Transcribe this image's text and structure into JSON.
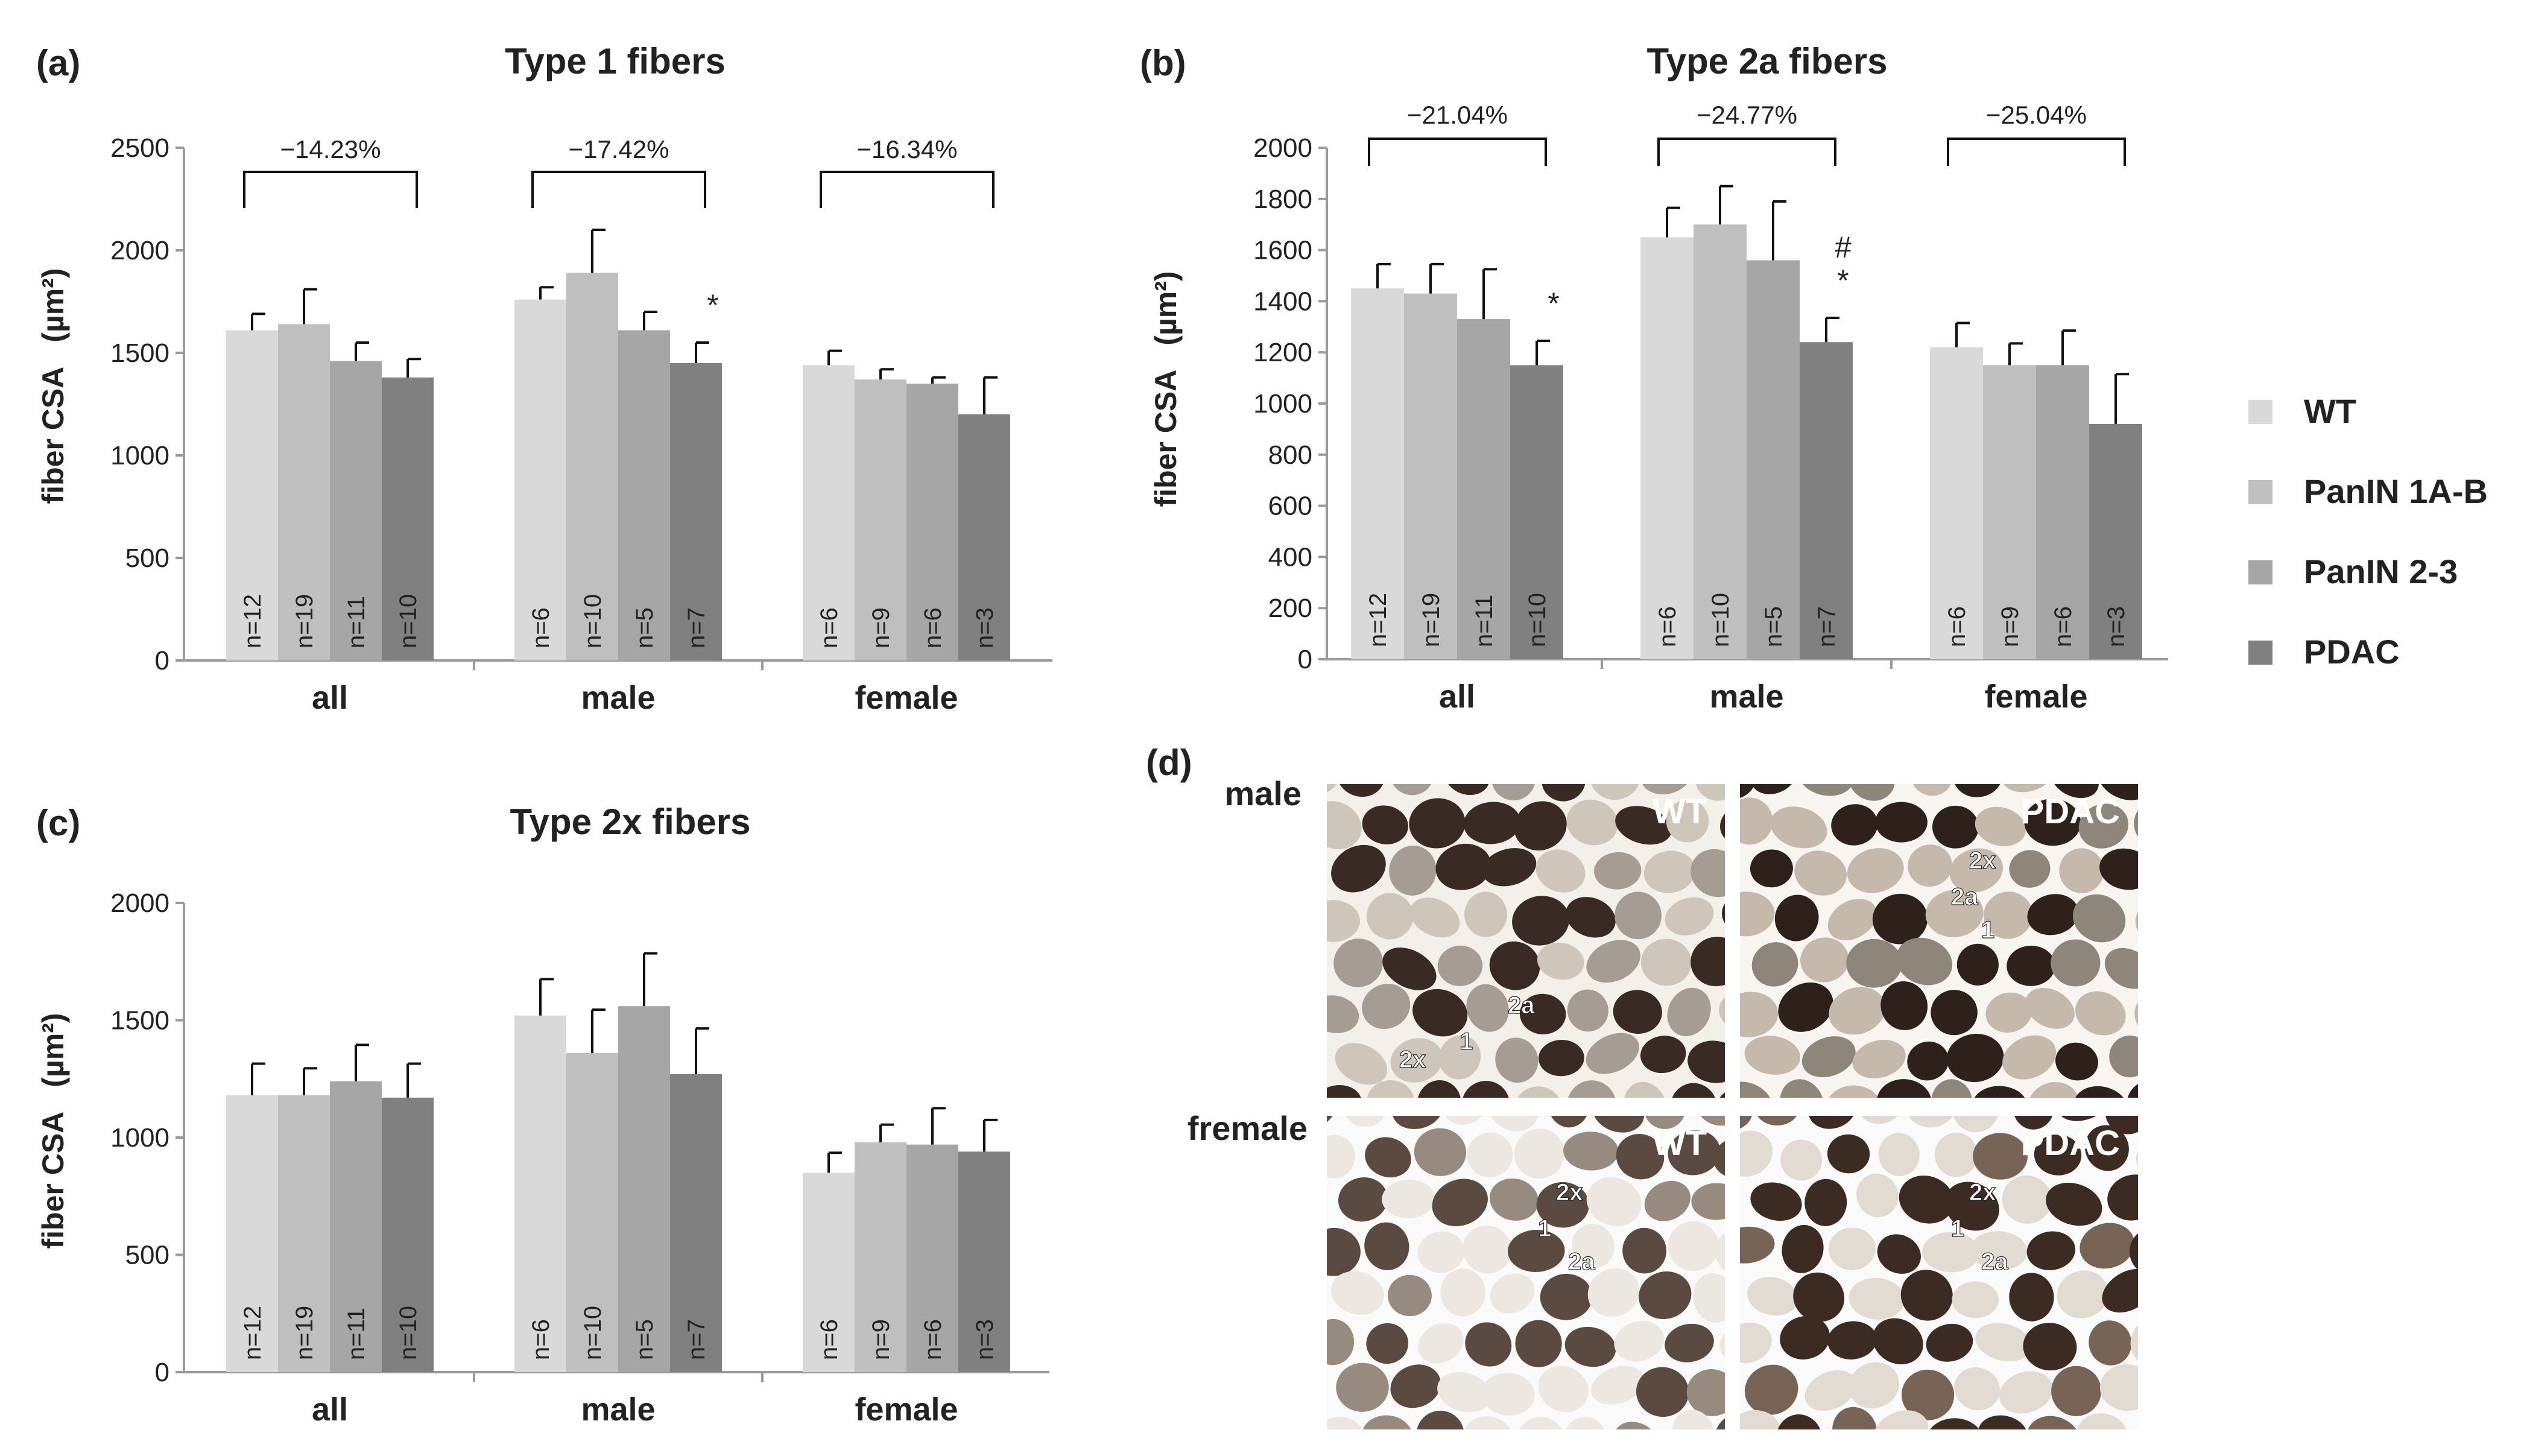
{
  "colors": {
    "WT": "#d9d9d9",
    "PanIN 1A-B": "#bfbfbf",
    "PanIN 2-3": "#a6a6a6",
    "PDAC": "#808080"
  },
  "legend": [
    "WT",
    "PanIN 1A-B",
    "PanIN 2-3",
    "PDAC"
  ],
  "chart_data": [
    {
      "id": "a",
      "panel_label": "(a)",
      "type": "bar",
      "title": "Type 1 fibers",
      "ylabel": "fiber CSA",
      "yunit": "(µm²)",
      "ylim": [
        0,
        2500
      ],
      "yticks": [
        "0",
        "500",
        "1000",
        "1500",
        "2000",
        "2500"
      ],
      "categories": [
        "all",
        "male",
        "female"
      ],
      "series": [
        {
          "name": "WT",
          "values": [
            1610,
            1760,
            1440
          ],
          "errors": [
            80,
            60,
            70
          ]
        },
        {
          "name": "PanIN 1A-B",
          "values": [
            1640,
            1890,
            1370
          ],
          "errors": [
            170,
            210,
            50
          ]
        },
        {
          "name": "PanIN 2-3",
          "values": [
            1460,
            1610,
            1350
          ],
          "errors": [
            90,
            90,
            30
          ]
        },
        {
          "name": "PDAC",
          "values": [
            1380,
            1450,
            1200
          ],
          "errors": [
            90,
            100,
            180
          ]
        }
      ],
      "n_labels": [
        [
          "n=12",
          "n=19",
          "n=11",
          "n=10"
        ],
        [
          "n=6",
          "n=10",
          "n=5",
          "n=7"
        ],
        [
          "n=6",
          "n=9",
          "n=6",
          "n=3"
        ]
      ],
      "brackets": [
        "−14.23%",
        "−17.42%",
        "−16.34%"
      ],
      "annotations": [
        "",
        "*",
        ""
      ]
    },
    {
      "id": "b",
      "panel_label": "(b)",
      "type": "bar",
      "title": "Type 2a fibers",
      "ylabel": "fiber CSA",
      "yunit": "(µm²)",
      "ylim": [
        0,
        2000
      ],
      "yticks": [
        "0",
        "200",
        "400",
        "600",
        "800",
        "1000",
        "1200",
        "1400",
        "1600",
        "1800",
        "2000"
      ],
      "categories": [
        "all",
        "male",
        "female"
      ],
      "series": [
        {
          "name": "WT",
          "values": [
            1450,
            1650,
            1220
          ],
          "errors": [
            95,
            115,
            95
          ]
        },
        {
          "name": "PanIN 1A-B",
          "values": [
            1430,
            1700,
            1150
          ],
          "errors": [
            115,
            150,
            85
          ]
        },
        {
          "name": "PanIN 2-3",
          "values": [
            1330,
            1560,
            1150
          ],
          "errors": [
            195,
            230,
            135
          ]
        },
        {
          "name": "PDAC",
          "values": [
            1150,
            1240,
            920
          ],
          "errors": [
            95,
            95,
            195
          ]
        }
      ],
      "n_labels": [
        [
          "n=12",
          "n=19",
          "n=11",
          "n=10"
        ],
        [
          "n=6",
          "n=10",
          "n=5",
          "n=7"
        ],
        [
          "n=6",
          "n=9",
          "n=6",
          "n=3"
        ]
      ],
      "brackets": [
        "−21.04%",
        "−24.77%",
        "−25.04%"
      ],
      "annotations": [
        "*",
        "#\n*",
        ""
      ]
    },
    {
      "id": "c",
      "panel_label": "(c)",
      "type": "bar",
      "title": "Type 2x fibers",
      "ylabel": "fiber CSA",
      "yunit": "(µm²)",
      "ylim": [
        0,
        2000
      ],
      "yticks": [
        "0",
        "500",
        "1000",
        "1500",
        "2000"
      ],
      "categories": [
        "all",
        "male",
        "female"
      ],
      "series": [
        {
          "name": "WT",
          "values": [
            1180,
            1520,
            850
          ],
          "errors": [
            135,
            155,
            85
          ]
        },
        {
          "name": "PanIN 1A-B",
          "values": [
            1180,
            1360,
            980
          ],
          "errors": [
            115,
            185,
            75
          ]
        },
        {
          "name": "PanIN 2-3",
          "values": [
            1240,
            1560,
            970
          ],
          "errors": [
            155,
            225,
            155
          ]
        },
        {
          "name": "PDAC",
          "values": [
            1170,
            1270,
            940
          ],
          "errors": [
            145,
            195,
            135
          ]
        }
      ],
      "n_labels": [
        [
          "n=12",
          "n=19",
          "n=11",
          "n=10"
        ],
        [
          "n=6",
          "n=10",
          "n=5",
          "n=7"
        ],
        [
          "n=6",
          "n=9",
          "n=6",
          "n=3"
        ]
      ],
      "brackets": [],
      "annotations": [
        "",
        "",
        ""
      ]
    }
  ],
  "panel_d": {
    "label": "(d)",
    "rows": [
      {
        "label": "male",
        "images": [
          {
            "title": "WT",
            "tone": "male-wt",
            "fibers": [
              "2a",
              "1",
              "2x"
            ]
          },
          {
            "title": "PDAC",
            "tone": "male-pdac",
            "fibers": [
              "2x",
              "2a",
              "1"
            ]
          }
        ]
      },
      {
        "label": "fremale",
        "images": [
          {
            "title": "WT",
            "tone": "female-wt",
            "fibers": [
              "2x",
              "1",
              "2a"
            ]
          },
          {
            "title": "PDAC",
            "tone": "female-pdac",
            "fibers": [
              "2x",
              "1",
              "2a"
            ]
          }
        ]
      }
    ]
  }
}
